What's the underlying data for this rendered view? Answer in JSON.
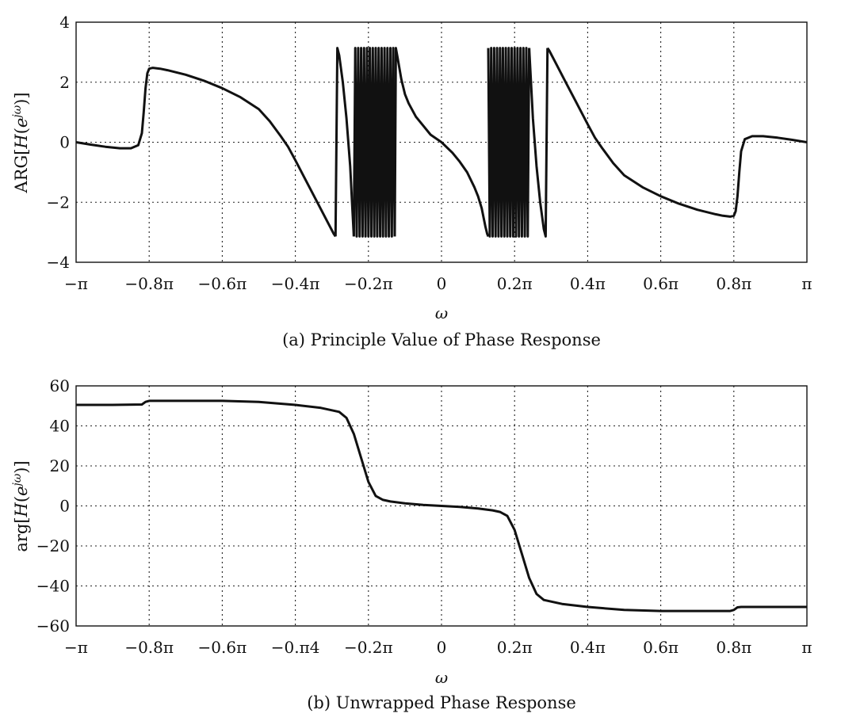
{
  "chart_data": [
    {
      "type": "line",
      "panel": "a",
      "caption": "(a) Principle Value of Phase Response",
      "xlabel": "ω",
      "ylabel": "ARG[H(e^{jω})]",
      "xlim": [
        -1.0,
        1.0
      ],
      "x_units": "π rad",
      "ylim": [
        -4,
        4
      ],
      "xticks": [
        -1.0,
        -0.8,
        -0.6,
        -0.4,
        -0.2,
        0,
        0.2,
        0.4,
        0.6,
        0.8,
        1.0
      ],
      "xtick_labels": [
        "−π",
        "−0.8π",
        "−0.6π",
        "−0.4π",
        "−0.2π",
        "0",
        "0.2π",
        "0.4π",
        "0.6π",
        "0.8π",
        "π"
      ],
      "yticks": [
        -4,
        -2,
        0,
        2,
        4
      ],
      "ytick_labels": [
        "−4",
        "−2",
        "0",
        "2",
        "4"
      ],
      "grid": true,
      "series": [
        {
          "x": [
            -1.0,
            -0.96,
            -0.92,
            -0.88,
            -0.85,
            -0.83,
            -0.82,
            -0.815,
            -0.81,
            -0.805,
            -0.8,
            -0.79,
            -0.77,
            -0.75,
            -0.7,
            -0.65,
            -0.6,
            -0.55,
            -0.5,
            -0.47,
            -0.44,
            -0.42,
            -0.4,
            -0.37,
            -0.34,
            -0.31,
            -0.295,
            -0.29
          ],
          "y": [
            0.0,
            -0.08,
            -0.15,
            -0.2,
            -0.2,
            -0.1,
            0.3,
            1.0,
            1.8,
            2.3,
            2.45,
            2.48,
            2.45,
            2.4,
            2.25,
            2.05,
            1.8,
            1.5,
            1.1,
            0.7,
            0.2,
            -0.15,
            -0.6,
            -1.3,
            -2.0,
            -2.7,
            -3.05,
            -3.14
          ]
        },
        {
          "x": [
            -0.29,
            -0.285,
            -0.28,
            -0.27,
            -0.26,
            -0.25,
            -0.245,
            -0.24
          ],
          "y": [
            -3.14,
            3.14,
            2.9,
            2.0,
            0.8,
            -0.8,
            -2.0,
            -3.14
          ]
        },
        {
          "x": [
            -0.24,
            -0.236,
            -0.232,
            -0.228,
            -0.224,
            -0.22,
            -0.216,
            -0.212,
            -0.208,
            -0.204,
            -0.2,
            -0.196,
            -0.192,
            -0.188,
            -0.184,
            -0.18,
            -0.176,
            -0.172,
            -0.168,
            -0.164,
            -0.16,
            -0.156,
            -0.152,
            -0.148,
            -0.144,
            -0.14,
            -0.136,
            -0.132,
            -0.128
          ],
          "y": [
            -3.14,
            3.14,
            -3.14,
            3.14,
            -3.14,
            3.14,
            -3.14,
            3.14,
            -3.14,
            3.14,
            -3.14,
            3.14,
            -3.14,
            3.14,
            -3.14,
            3.14,
            -3.14,
            3.14,
            -3.14,
            3.14,
            -3.14,
            3.14,
            -3.14,
            3.14,
            -3.14,
            3.14,
            -3.14,
            3.14,
            -3.14
          ]
        },
        {
          "x": [
            -0.128,
            -0.125,
            -0.12,
            -0.11,
            -0.1,
            -0.09,
            -0.07,
            -0.05,
            -0.03,
            0.0,
            0.03,
            0.05,
            0.07,
            0.09,
            0.1,
            0.11,
            0.12,
            0.125,
            0.128
          ],
          "y": [
            -3.14,
            3.14,
            2.8,
            2.1,
            1.6,
            1.3,
            0.85,
            0.55,
            0.25,
            0.0,
            -0.35,
            -0.65,
            -1.0,
            -1.5,
            -1.8,
            -2.2,
            -2.8,
            -3.05,
            -3.14
          ]
        },
        {
          "x": [
            0.128,
            0.132,
            0.136,
            0.14,
            0.144,
            0.148,
            0.152,
            0.156,
            0.16,
            0.164,
            0.168,
            0.172,
            0.176,
            0.18,
            0.184,
            0.188,
            0.192,
            0.196,
            0.2,
            0.204,
            0.208,
            0.212,
            0.216,
            0.22,
            0.224,
            0.228,
            0.232,
            0.236,
            0.24
          ],
          "y": [
            3.14,
            -3.14,
            3.14,
            -3.14,
            3.14,
            -3.14,
            3.14,
            -3.14,
            3.14,
            -3.14,
            3.14,
            -3.14,
            3.14,
            -3.14,
            3.14,
            -3.14,
            3.14,
            -3.14,
            3.14,
            -3.14,
            3.14,
            -3.14,
            3.14,
            -3.14,
            3.14,
            -3.14,
            3.14,
            -3.14,
            3.14
          ]
        },
        {
          "x": [
            0.24,
            0.245,
            0.25,
            0.26,
            0.27,
            0.28,
            0.285,
            0.29
          ],
          "y": [
            3.14,
            2.0,
            0.8,
            -0.8,
            -2.0,
            -2.9,
            -3.14,
            3.14
          ]
        },
        {
          "x": [
            0.29,
            0.295,
            0.31,
            0.34,
            0.37,
            0.4,
            0.42,
            0.44,
            0.47,
            0.5,
            0.55,
            0.6,
            0.65,
            0.7,
            0.75,
            0.77,
            0.79,
            0.8,
            0.805,
            0.81,
            0.815,
            0.82,
            0.83,
            0.85,
            0.88,
            0.92,
            0.96,
            1.0
          ],
          "y": [
            3.14,
            3.05,
            2.7,
            2.0,
            1.3,
            0.6,
            0.15,
            -0.2,
            -0.7,
            -1.1,
            -1.5,
            -1.8,
            -2.05,
            -2.25,
            -2.4,
            -2.45,
            -2.48,
            -2.45,
            -2.3,
            -1.8,
            -1.0,
            -0.3,
            0.1,
            0.2,
            0.2,
            0.15,
            0.08,
            0.0
          ]
        }
      ]
    },
    {
      "type": "line",
      "panel": "b",
      "caption": "(b) Unwrapped Phase Response",
      "xlabel": "ω",
      "ylabel": "arg[H(e^{jω})]",
      "xlim": [
        -1.0,
        1.0
      ],
      "x_units": "π rad",
      "ylim": [
        -60,
        60
      ],
      "xticks": [
        -1.0,
        -0.8,
        -0.6,
        -0.4,
        -0.2,
        0,
        0.2,
        0.4,
        0.6,
        0.8,
        1.0
      ],
      "xtick_labels": [
        "−π",
        "−0.8π",
        "−0.6π",
        "−0.π4",
        "−0.2π",
        "0",
        "0.2π",
        "0.4π",
        "0.6π",
        "0.8π",
        "π"
      ],
      "yticks": [
        -60,
        -40,
        -20,
        0,
        20,
        40,
        60
      ],
      "ytick_labels": [
        "−60",
        "−40",
        "−20",
        "0",
        "20",
        "40",
        "60"
      ],
      "grid": true,
      "series": [
        {
          "x": [
            -1.0,
            -0.9,
            -0.82,
            -0.81,
            -0.8,
            -0.79,
            -0.7,
            -0.6,
            -0.5,
            -0.4,
            -0.33,
            -0.28,
            -0.26,
            -0.24,
            -0.22,
            -0.2,
            -0.18,
            -0.16,
            -0.14,
            -0.1,
            -0.05,
            0.0,
            0.05,
            0.1,
            0.14,
            0.16,
            0.18,
            0.2,
            0.22,
            0.24,
            0.26,
            0.28,
            0.33,
            0.4,
            0.5,
            0.6,
            0.7,
            0.79,
            0.8,
            0.81,
            0.82,
            0.9,
            1.0
          ],
          "y": [
            50.5,
            50.5,
            50.7,
            52.0,
            52.5,
            52.5,
            52.5,
            52.5,
            52.0,
            50.5,
            49.0,
            47.0,
            44.0,
            36.0,
            24.0,
            12.0,
            5.0,
            3.0,
            2.2,
            1.3,
            0.5,
            0.0,
            -0.5,
            -1.3,
            -2.2,
            -3.0,
            -5.0,
            -12.0,
            -24.0,
            -36.0,
            -44.0,
            -47.0,
            -49.0,
            -50.5,
            -52.0,
            -52.5,
            -52.5,
            -52.5,
            -52.0,
            -50.7,
            -50.5,
            -50.5,
            -50.5
          ]
        }
      ]
    }
  ]
}
